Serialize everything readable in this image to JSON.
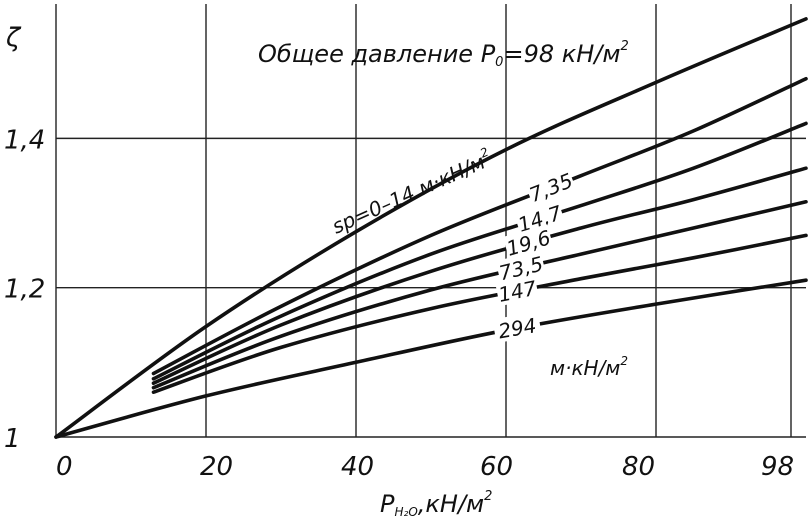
{
  "chart_data": {
    "type": "line",
    "title": "Общее давление P",
    "title_sub": "0",
    "title_value": "=98 кН/м",
    "title_sup": "2",
    "ylabel": "ζ",
    "xlabel": {
      "main": "P",
      "sub": "H₂O",
      "rest": ",кН/м",
      "sup": "2"
    },
    "xticks": [
      {
        "v": 0,
        "label": "0"
      },
      {
        "v": 20,
        "label": "20"
      },
      {
        "v": 40,
        "label": "40"
      },
      {
        "v": 60,
        "label": "60"
      },
      {
        "v": 80,
        "label": "80"
      },
      {
        "v": 98,
        "label": "98"
      }
    ],
    "yticks": [
      {
        "v": 1.0,
        "label": "1"
      },
      {
        "v": 1.2,
        "label": "1,2"
      },
      {
        "v": 1.4,
        "label": "1,4"
      }
    ],
    "xlim": [
      0,
      100
    ],
    "ylim": [
      1.0,
      1.58
    ],
    "grid": true,
    "units_label": "м·кН/м",
    "units_sup": "2",
    "series": [
      {
        "name": "sp=0–14 м·кН/м",
        "name_sup": "2",
        "x": [
          0,
          20,
          40,
          60,
          80,
          100
        ],
        "y": [
          1.0,
          1.148,
          1.275,
          1.385,
          1.475,
          1.56
        ]
      },
      {
        "name": "7,35",
        "x": [
          13,
          30,
          50,
          70,
          85,
          100
        ],
        "y": [
          1.085,
          1.175,
          1.27,
          1.35,
          1.41,
          1.48
        ]
      },
      {
        "name": "14,7",
        "x": [
          13,
          30,
          50,
          70,
          85,
          100
        ],
        "y": [
          1.078,
          1.162,
          1.245,
          1.31,
          1.36,
          1.42
        ]
      },
      {
        "name": "19,6",
        "x": [
          13,
          30,
          50,
          70,
          85,
          100
        ],
        "y": [
          1.072,
          1.15,
          1.222,
          1.28,
          1.318,
          1.36
        ]
      },
      {
        "name": "73,5",
        "x": [
          13,
          30,
          50,
          70,
          85,
          100
        ],
        "y": [
          1.066,
          1.135,
          1.197,
          1.245,
          1.28,
          1.315
        ]
      },
      {
        "name": "147",
        "x": [
          13,
          30,
          50,
          70,
          85,
          100
        ],
        "y": [
          1.06,
          1.12,
          1.172,
          1.212,
          1.24,
          1.27
        ]
      },
      {
        "name": "294",
        "x": [
          0,
          20,
          40,
          60,
          80,
          100
        ],
        "y": [
          1.0,
          1.055,
          1.1,
          1.143,
          1.178,
          1.21
        ]
      }
    ]
  }
}
